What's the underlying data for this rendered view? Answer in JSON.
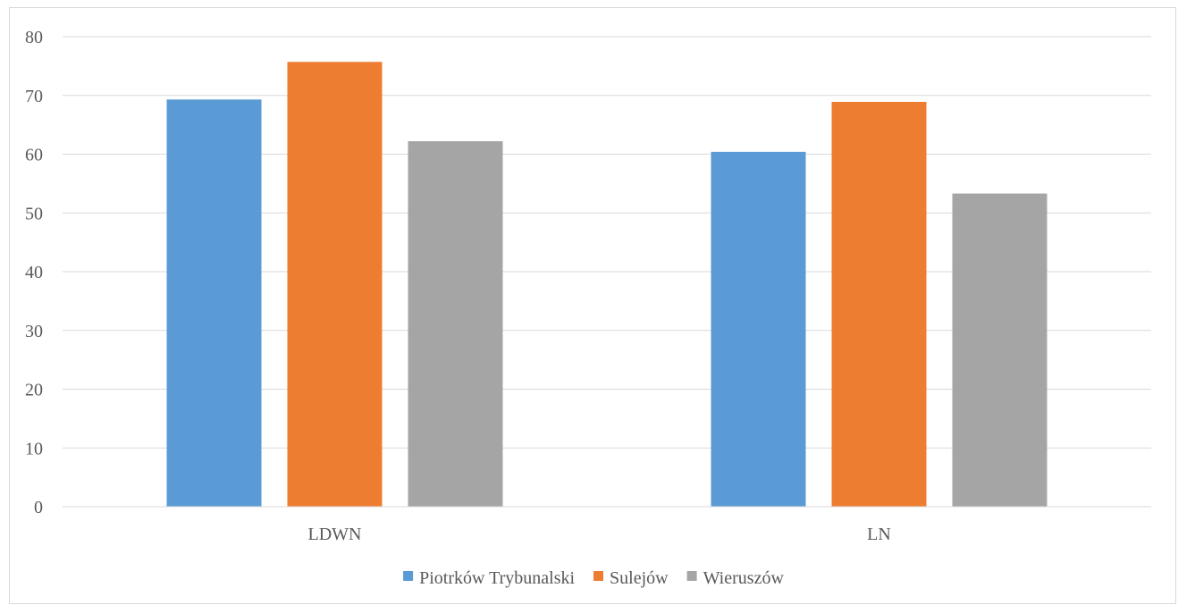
{
  "chart_data": {
    "type": "bar",
    "title": "",
    "xlabel": "",
    "ylabel": "",
    "categories": [
      "LDWN",
      "LN"
    ],
    "series": [
      {
        "name": "Piotrków Trybunalski",
        "color": "#5b9bd5",
        "values": [
          69.3,
          60.4
        ]
      },
      {
        "name": "Sulejów",
        "color": "#ed7d31",
        "values": [
          75.7,
          68.9
        ]
      },
      {
        "name": "Wieruszów",
        "color": "#a5a5a5",
        "values": [
          62.2,
          53.3
        ]
      }
    ],
    "ylim": [
      0,
      80
    ],
    "yticks": [
      0,
      10,
      20,
      30,
      40,
      50,
      60,
      70,
      80
    ],
    "grid": true,
    "legend_position": "bottom",
    "gridline_color": "#d9d9d9"
  }
}
